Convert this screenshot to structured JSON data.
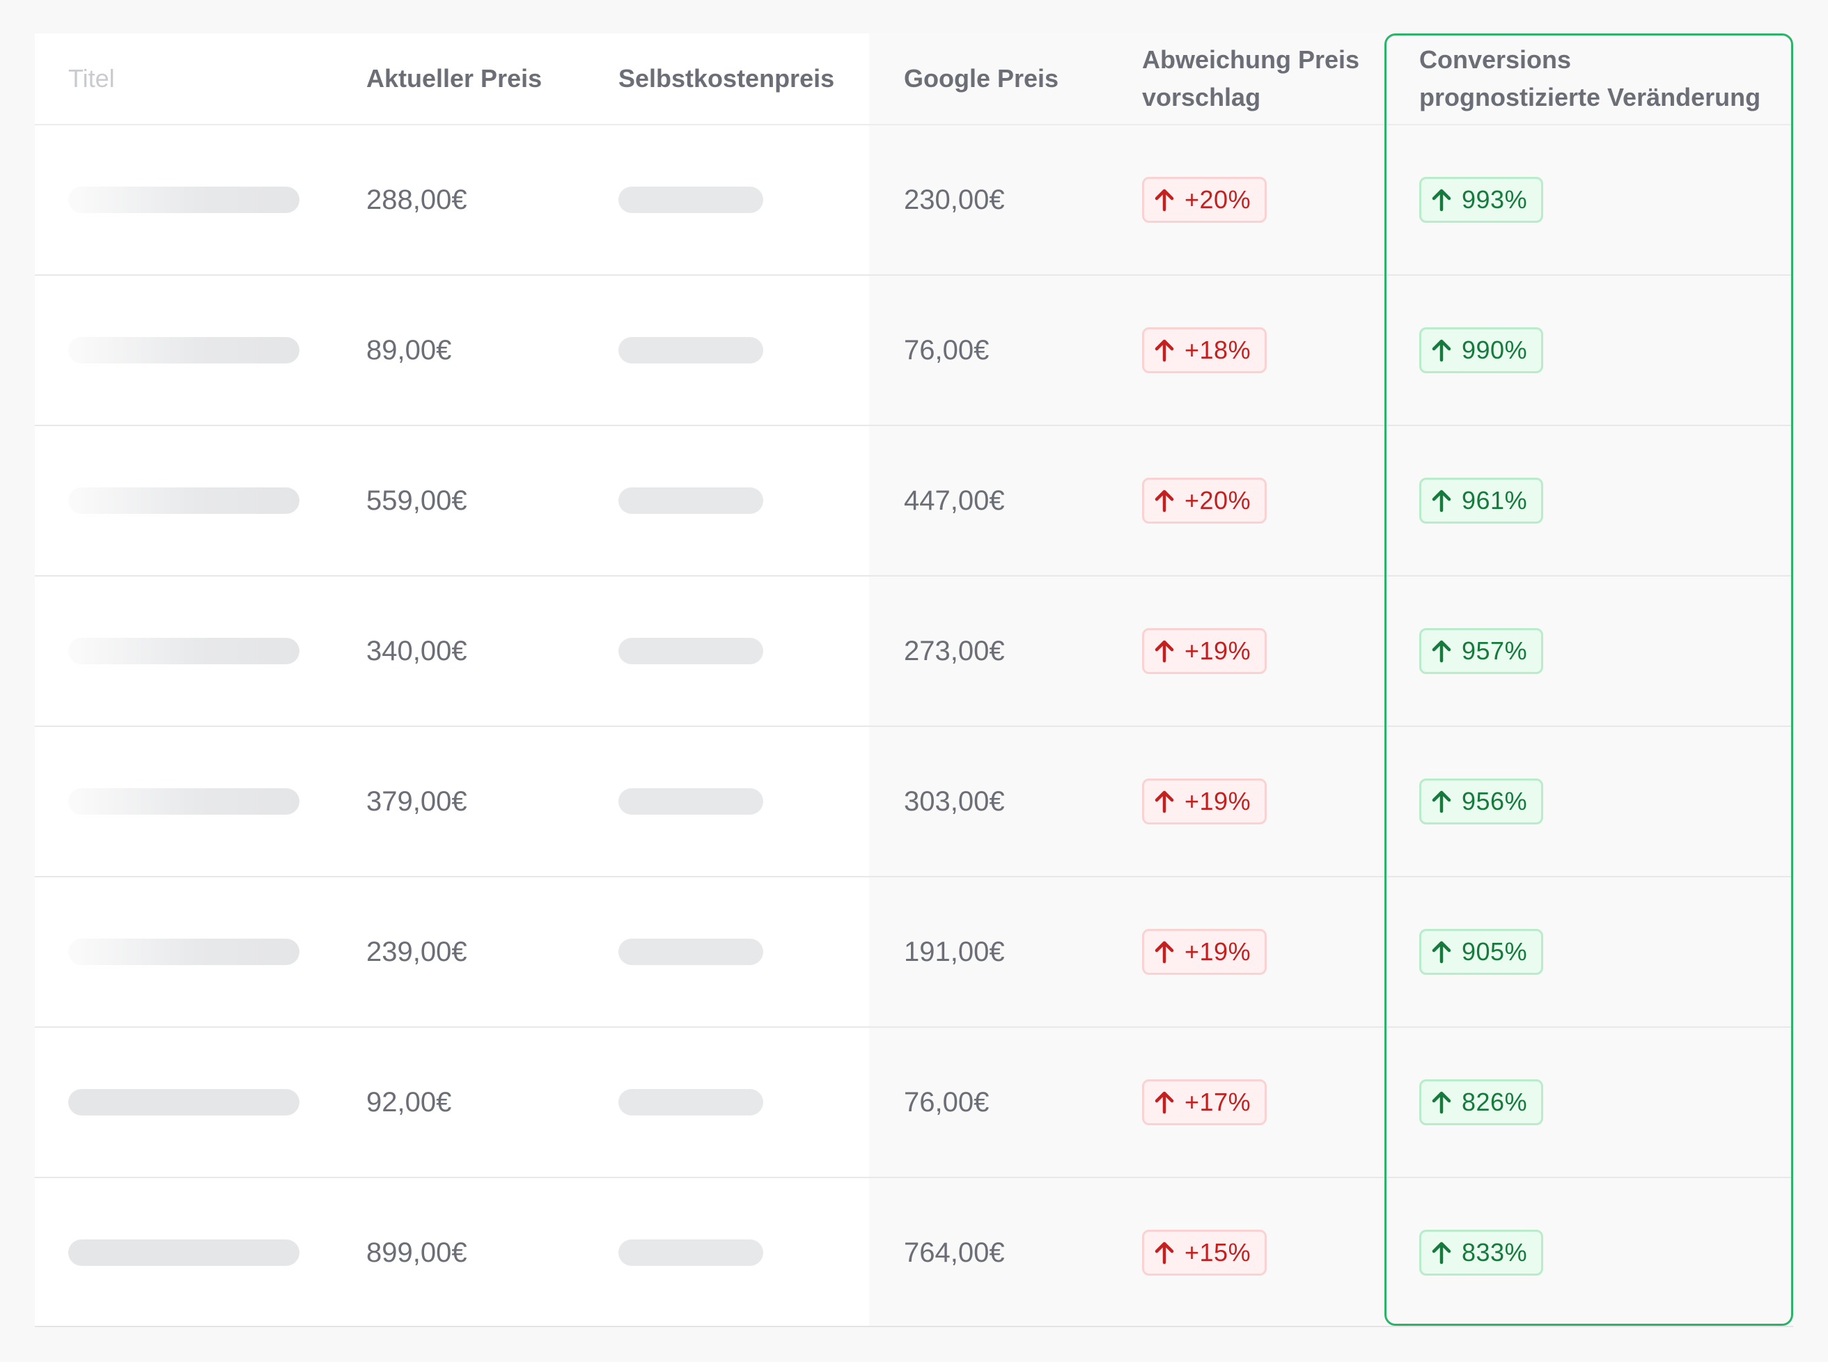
{
  "columns": {
    "title": "Titel",
    "current_price": "Aktueller Preis",
    "cost_price": "Selbstkostenpreis",
    "google_price": "Google Preis",
    "deviation_line1": "Abweichung Preis",
    "deviation_line2": "vorschlag",
    "conversions_line1": "Conversions",
    "conversions_line2": "prognostizierte Veränderung"
  },
  "colors": {
    "negative_text": "#c42020",
    "positive_text": "#157a3c",
    "highlight_border": "#2bb36a"
  },
  "icons": {
    "badge_arrow": "arrow-up-icon"
  },
  "rows": [
    {
      "current_price": "288,00€",
      "google_price": "230,00€",
      "deviation": "+20%",
      "conversion_change": "993%"
    },
    {
      "current_price": "89,00€",
      "google_price": "76,00€",
      "deviation": "+18%",
      "conversion_change": "990%"
    },
    {
      "current_price": "559,00€",
      "google_price": "447,00€",
      "deviation": "+20%",
      "conversion_change": "961%"
    },
    {
      "current_price": "340,00€",
      "google_price": "273,00€",
      "deviation": "+19%",
      "conversion_change": "957%"
    },
    {
      "current_price": "379,00€",
      "google_price": "303,00€",
      "deviation": "+19%",
      "conversion_change": "956%"
    },
    {
      "current_price": "239,00€",
      "google_price": "191,00€",
      "deviation": "+19%",
      "conversion_change": "905%"
    },
    {
      "current_price": "92,00€",
      "google_price": "76,00€",
      "deviation": "+17%",
      "conversion_change": "826%"
    },
    {
      "current_price": "899,00€",
      "google_price": "764,00€",
      "deviation": "+15%",
      "conversion_change": "833%"
    }
  ]
}
